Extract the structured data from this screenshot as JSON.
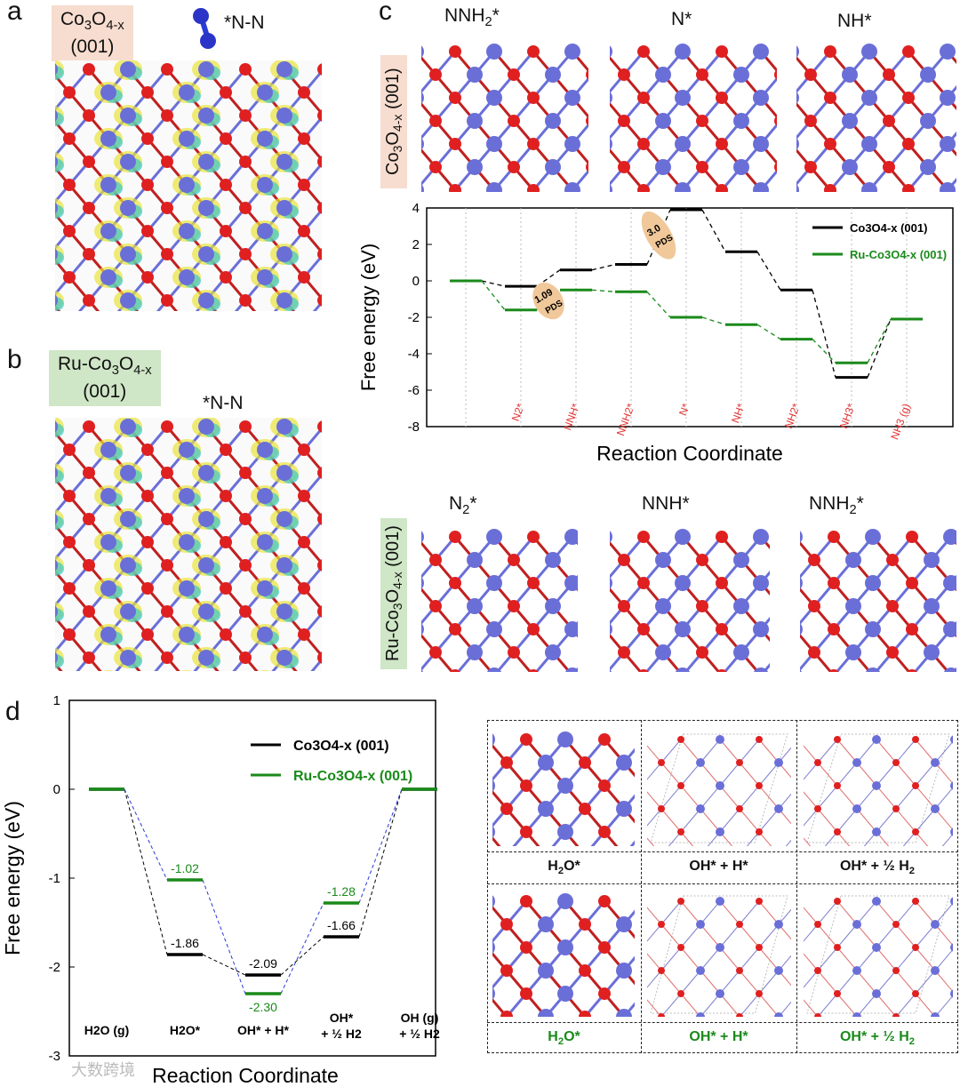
{
  "panels": {
    "a": {
      "letter": "a",
      "tag": [
        "Co3O4-x",
        "(001)"
      ],
      "adsorbate": "*N-N"
    },
    "b": {
      "letter": "b",
      "tag": [
        "Ru-Co3O4-x",
        "(001)"
      ],
      "adsorbate": "*N-N"
    },
    "c": {
      "letter": "c",
      "top_side_tag": "Co3O4-x (001)",
      "bottom_side_tag": "Ru-Co3O4-x (001)",
      "top_structures": [
        "NNH2*",
        "N*",
        "NH*"
      ],
      "bottom_structures": [
        "N2*",
        "NNH*",
        "NNH2*"
      ]
    },
    "d": {
      "letter": "d",
      "grid_labels_top": [
        "H2O*",
        "OH* + H*",
        "OH* + ½ H2"
      ],
      "grid_labels_bottom": [
        "H2O*",
        "OH* + H*",
        "OH* + ½ H2"
      ]
    }
  },
  "colors": {
    "co3o4": "#000000",
    "ru": "#1a8a1a",
    "red_label": "#e03030",
    "blue_dash": "#2a3bd6",
    "pds_bubble": "#f0c89a",
    "atom_co": "#6a6fd8",
    "atom_o": "#e02020",
    "atom_ru": "#2a7f7f",
    "iso_yellow": "#e8e23a",
    "iso_cyan": "#3cc6c8"
  },
  "watermark": "大数跨境",
  "chart_data": [
    {
      "type": "line",
      "title": "",
      "xlabel": "Reaction Coordinate",
      "ylabel": "Free energy (eV)",
      "ylim": [
        -8,
        4
      ],
      "yticks": [
        -8,
        -6,
        -4,
        -2,
        0,
        2,
        4
      ],
      "categories": [
        "",
        "N2*",
        "NNH*",
        "NNH2*",
        "N*",
        "NH*",
        "NH2*",
        "NH3*",
        "NH3 (g)"
      ],
      "legend": [
        "Co3O4-x (001)",
        "Ru-Co3O4-x (001)"
      ],
      "legend_position": "top-right",
      "series": [
        {
          "name": "Co3O4-x (001)",
          "values": [
            0,
            -0.3,
            0.6,
            0.9,
            3.9,
            1.6,
            -0.5,
            -5.3,
            -2.1
          ]
        },
        {
          "name": "Ru-Co3O4-x (001)",
          "values": [
            0,
            -1.6,
            -0.5,
            -0.6,
            -2.0,
            -2.4,
            -3.2,
            -4.5,
            -2.1
          ]
        }
      ],
      "annotations": [
        {
          "text": "1.09",
          "sub": "PDS",
          "between": [
            "N2*",
            "NNH*"
          ]
        },
        {
          "text": "3.0",
          "sub": "PDS",
          "between": [
            "NNH2*",
            "N*"
          ]
        }
      ]
    },
    {
      "type": "line",
      "title": "",
      "xlabel": "Reaction Coordinate",
      "ylabel": "Free energy (eV)",
      "ylim": [
        -3,
        1
      ],
      "yticks": [
        -3,
        -2,
        -1,
        0,
        1
      ],
      "categories": [
        "H2O (g)",
        "H2O*",
        "OH* + H*",
        "OH* + ½ H2",
        "OH (g) + ½ H2"
      ],
      "legend": [
        "Co3O4-x (001)",
        "Ru-Co3O4-x (001)"
      ],
      "legend_position": "top-right",
      "series": [
        {
          "name": "Co3O4-x (001)",
          "values": [
            0,
            -1.86,
            -2.09,
            -1.66,
            0
          ]
        },
        {
          "name": "Ru-Co3O4-x (001)",
          "values": [
            0,
            -1.02,
            -2.3,
            -1.28,
            0
          ]
        }
      ],
      "data_labels": {
        "Co3O4-x (001)": [
          "",
          "-1.86",
          "-2.09",
          "-1.66",
          ""
        ],
        "Ru-Co3O4-x (001)": [
          "",
          "-1.02",
          "-2.30",
          "-1.28",
          ""
        ]
      }
    }
  ]
}
